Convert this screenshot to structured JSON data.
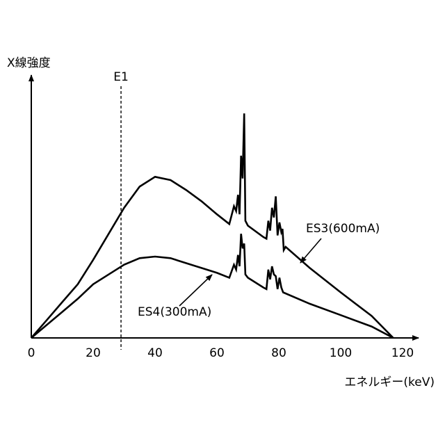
{
  "chart_data": {
    "type": "line",
    "ylabel": "X線強度",
    "xlabel": "エネルギー(keV)",
    "xlim": [
      0,
      125
    ],
    "ylim": [
      0,
      14
    ],
    "x_ticks": [
      0,
      20,
      40,
      60,
      80,
      100,
      120
    ],
    "y_ticks": [],
    "grid": false,
    "legend": "none",
    "annotations": [
      {
        "text": "E1",
        "type": "vertical-line",
        "x": 29
      }
    ],
    "series": [
      {
        "name": "ES3(600mA)",
        "points": [
          [
            0,
            0
          ],
          [
            5,
            1.1
          ],
          [
            10,
            2.2
          ],
          [
            15,
            3.3
          ],
          [
            20,
            4.8
          ],
          [
            25,
            6.4
          ],
          [
            30,
            8.0
          ],
          [
            35,
            9.3
          ],
          [
            40,
            9.9
          ],
          [
            45,
            9.7
          ],
          [
            50,
            9.1
          ],
          [
            55,
            8.4
          ],
          [
            60,
            7.6
          ],
          [
            64,
            7.0
          ],
          [
            65.5,
            8.1
          ],
          [
            66.2,
            7.8
          ],
          [
            66.8,
            8.8
          ],
          [
            67.3,
            7.6
          ],
          [
            67.8,
            11.2
          ],
          [
            68.3,
            9.8
          ],
          [
            68.8,
            13.8
          ],
          [
            69.2,
            7.2
          ],
          [
            70,
            6.9
          ],
          [
            75,
            6.2
          ],
          [
            76,
            6.1
          ],
          [
            76.6,
            7.2
          ],
          [
            77.2,
            6.6
          ],
          [
            77.8,
            8.0
          ],
          [
            78.4,
            7.4
          ],
          [
            79,
            8.7
          ],
          [
            79.6,
            6.3
          ],
          [
            80.2,
            7.1
          ],
          [
            80.8,
            6.5
          ],
          [
            81.2,
            6.7
          ],
          [
            81.6,
            5.4
          ],
          [
            82.2,
            5.6
          ],
          [
            90,
            4.3
          ],
          [
            100,
            2.8
          ],
          [
            110,
            1.35
          ],
          [
            117,
            0
          ]
        ]
      },
      {
        "name": "ES4(300mA)",
        "points": [
          [
            0,
            0
          ],
          [
            5,
            0.8
          ],
          [
            10,
            1.6
          ],
          [
            15,
            2.4
          ],
          [
            20,
            3.3
          ],
          [
            25,
            3.9
          ],
          [
            30,
            4.5
          ],
          [
            35,
            4.9
          ],
          [
            40,
            5.0
          ],
          [
            45,
            4.9
          ],
          [
            50,
            4.6
          ],
          [
            55,
            4.3
          ],
          [
            60,
            4.0
          ],
          [
            64,
            3.7
          ],
          [
            65.5,
            4.5
          ],
          [
            66.2,
            4.2
          ],
          [
            66.8,
            5.1
          ],
          [
            67.3,
            4.4
          ],
          [
            67.8,
            6.4
          ],
          [
            68.3,
            5.5
          ],
          [
            68.8,
            5.8
          ],
          [
            69.2,
            3.9
          ],
          [
            70,
            3.7
          ],
          [
            75,
            3.1
          ],
          [
            76,
            3.0
          ],
          [
            76.6,
            4.2
          ],
          [
            77.2,
            3.6
          ],
          [
            77.8,
            4.4
          ],
          [
            78.4,
            3.9
          ],
          [
            79,
            3.8
          ],
          [
            79.6,
            3.0
          ],
          [
            80.2,
            3.7
          ],
          [
            80.8,
            3.1
          ],
          [
            81.4,
            2.8
          ],
          [
            90,
            2.1
          ],
          [
            100,
            1.4
          ],
          [
            110,
            0.7
          ],
          [
            117,
            0
          ]
        ]
      }
    ]
  }
}
